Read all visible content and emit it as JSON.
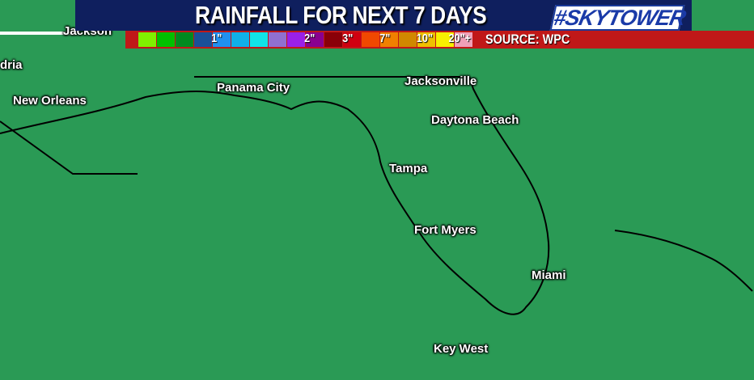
{
  "header": {
    "title": "RAINFALL FOR NEXT 7 DAYS",
    "brand": "#SKYTOWER"
  },
  "legend": {
    "swatch_colors": [
      "#80f000",
      "#00c000",
      "#008a20",
      "#1a5098",
      "#2090f0",
      "#10b0e8",
      "#10e4e8",
      "#9070d0",
      "#9a20e8",
      "#8a0090",
      "#8a0008",
      "#d00010",
      "#f04800",
      "#f08000",
      "#d08800",
      "#f0c000",
      "#f8f000",
      "#f0a0b8"
    ],
    "labels": [
      "1\"",
      "2\"",
      "3\"",
      "7\"",
      "10\"",
      "20\"+"
    ],
    "source": "SOURCE: WPC"
  },
  "cities": [
    {
      "name": "Jackson"
    },
    {
      "name": "dria"
    },
    {
      "name": "New Orleans"
    },
    {
      "name": "Panama City"
    },
    {
      "name": "Jacksonville"
    },
    {
      "name": "Daytona Beach"
    },
    {
      "name": "Tampa"
    },
    {
      "name": "Fort Myers"
    },
    {
      "name": "Miami"
    },
    {
      "name": "Key West"
    }
  ]
}
